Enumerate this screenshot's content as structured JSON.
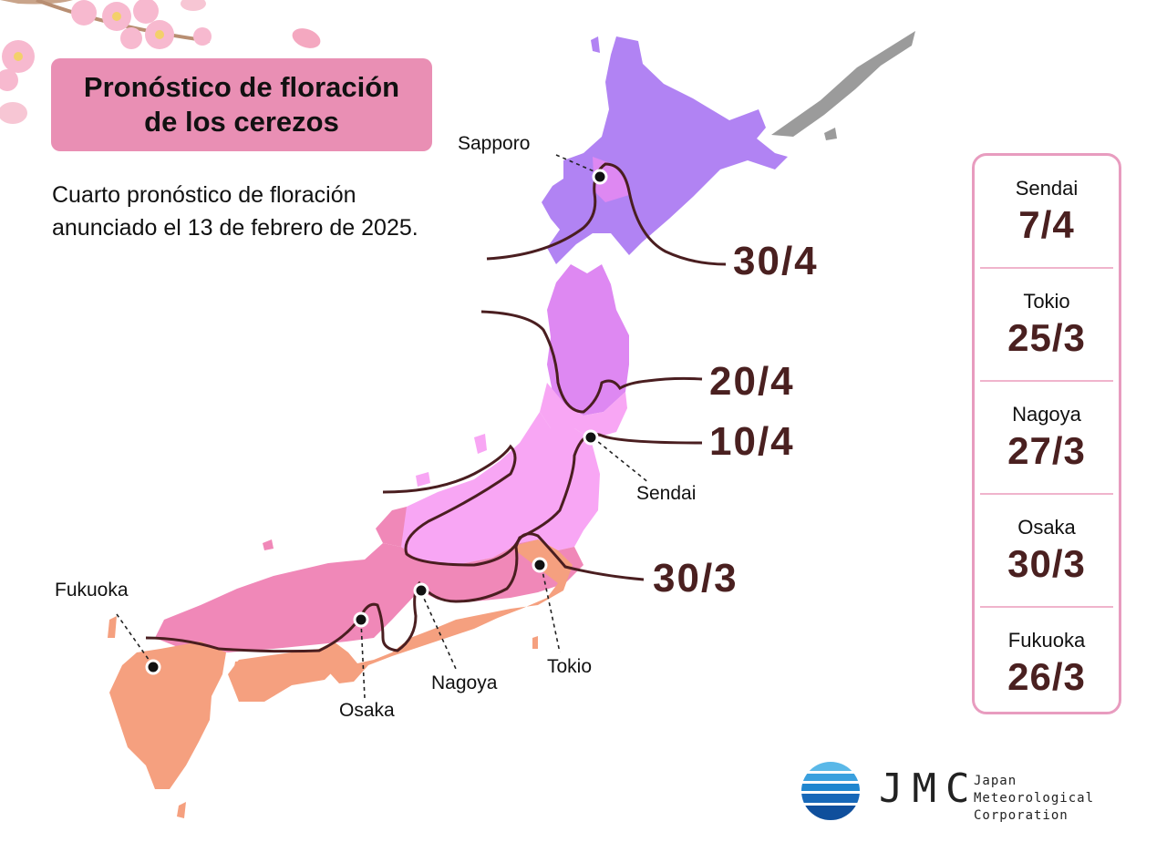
{
  "title": {
    "line1": "Pronóstico de floración",
    "line2": "de los cerezos"
  },
  "subtitle": {
    "line1": "Cuarto pronóstico de floración",
    "line2": "anunciado el 13 de febrero de 2025."
  },
  "map_labels": {
    "sapporo": "Sapporo",
    "sendai": "Sendai",
    "tokio": "Tokio",
    "nagoya": "Nagoya",
    "osaka": "Osaka",
    "fukuoka": "Fukuoka"
  },
  "isoline_dates": {
    "d1": "30/4",
    "d2": "20/4",
    "d3": "10/4",
    "d4": "30/3"
  },
  "forecast_panel": [
    {
      "city": "Sendai",
      "date": "7/4"
    },
    {
      "city": "Tokio",
      "date": "25/3"
    },
    {
      "city": "Nagoya",
      "date": "27/3"
    },
    {
      "city": "Osaka",
      "date": "30/3"
    },
    {
      "city": "Fukuoka",
      "date": "26/3"
    }
  ],
  "logo": {
    "mark": "JMC",
    "name_line1": "Japan Meteorological",
    "name_line2": "Corporation"
  },
  "colors": {
    "zone_before_30_3": "#f5a07f",
    "zone_30_3_to_10_4": "#f088b8",
    "zone_10_4_to_20_4": "#f8a6f4",
    "zone_20_4_to_30_4": "#de88f2",
    "zone_after_30_4": "#b183f3",
    "no_data": "#9b9b9b",
    "isoline": "#4a1e20",
    "title_box": "#e98fb4",
    "date_text": "#4a2020"
  }
}
